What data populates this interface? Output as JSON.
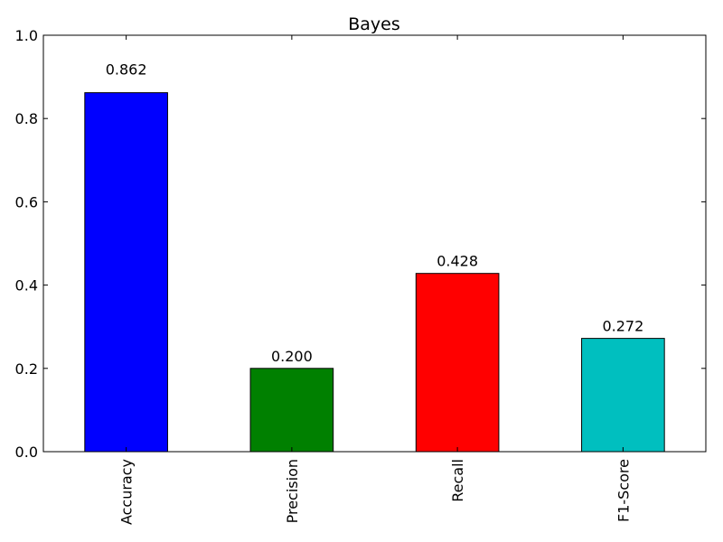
{
  "chart_data": {
    "type": "bar",
    "title": "Bayes",
    "xlabel": "",
    "ylabel": "",
    "categories": [
      "Accuracy",
      "Precision",
      "Recall",
      "F1-Score"
    ],
    "values": [
      0.862,
      0.2,
      0.428,
      0.272
    ],
    "value_labels": [
      "0.862",
      "0.200",
      "0.428",
      "0.272"
    ],
    "bar_colors": [
      "#0000ff",
      "#008000",
      "#ff0000",
      "#00bfbf"
    ],
    "ylim": [
      0,
      1.0
    ],
    "yticks": [
      0.0,
      0.2,
      0.4,
      0.6,
      0.8,
      1.0
    ],
    "ytick_labels": [
      "0.0",
      "0.2",
      "0.4",
      "0.6",
      "0.8",
      "1.0"
    ],
    "grid": false,
    "legend": "none"
  }
}
